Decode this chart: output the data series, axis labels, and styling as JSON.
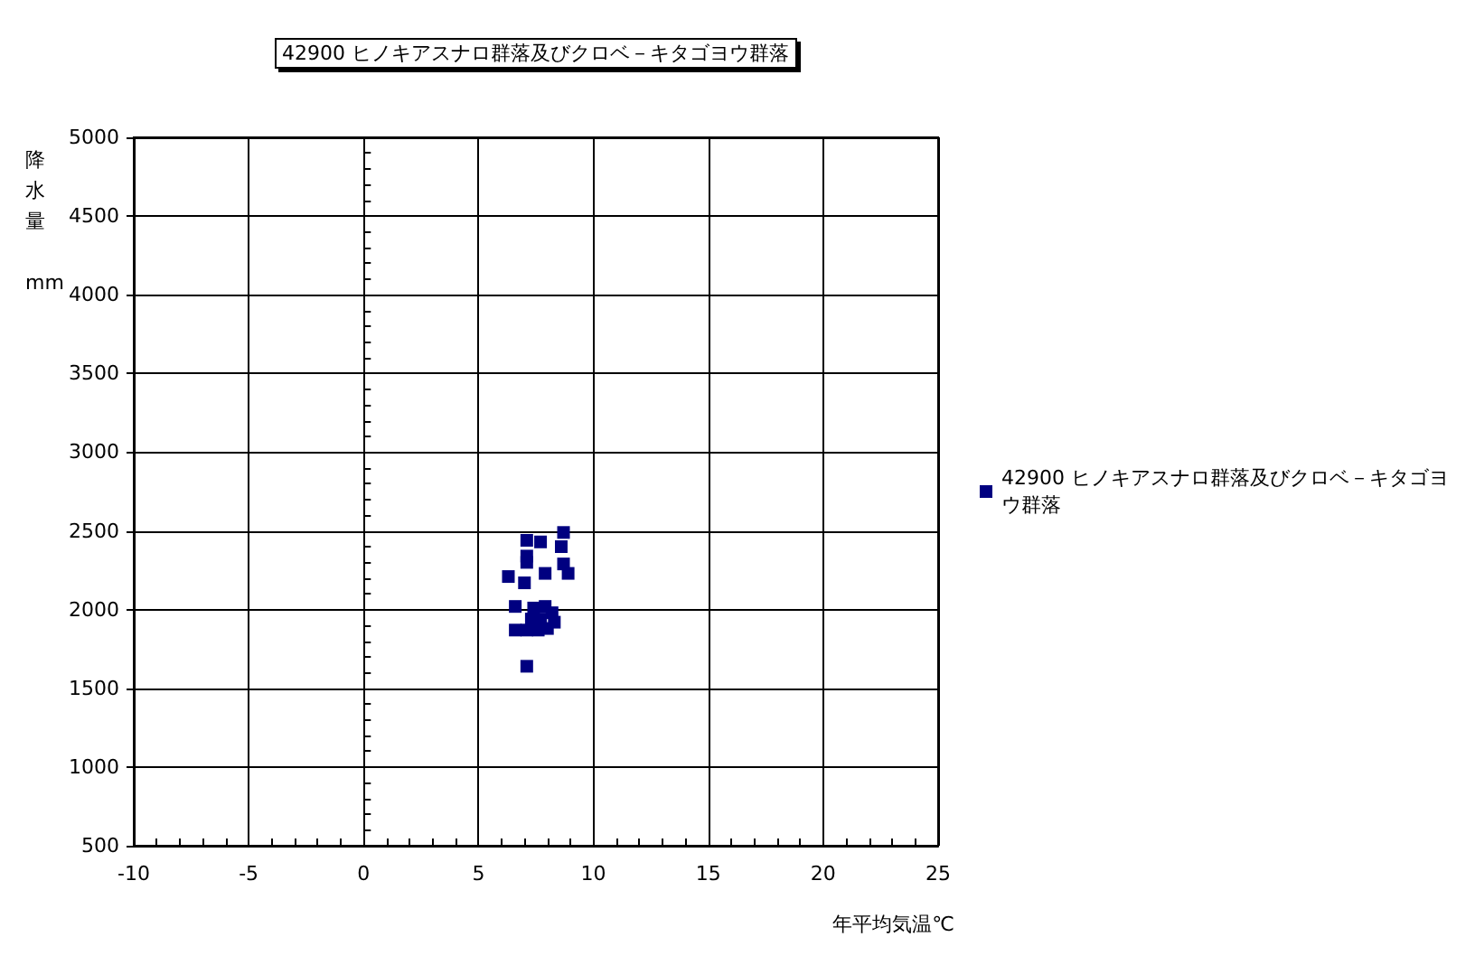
{
  "chart_data": {
    "type": "scatter",
    "title": "42900 ヒノキアスナロ群落及びクロベ－キタゴヨウ群落",
    "xlabel": "年平均気温℃",
    "ylabel": "降水量 mm",
    "x": [
      8.7,
      7.1,
      7.7,
      8.6,
      7.1,
      7.1,
      8.7,
      7.9,
      8.9,
      6.3,
      7.0,
      6.6,
      7.4,
      7.9,
      8.2,
      8.3,
      8.0,
      7.6,
      7.3,
      7.7,
      6.6,
      7.1,
      7.1
    ],
    "series": [
      {
        "name": "42900 ヒノキアスナロ群落及びクロベ－キタゴヨウ群落",
        "color": "#000080",
        "values": [
          2490,
          2440,
          2430,
          2400,
          2340,
          2300,
          2290,
          2230,
          2230,
          2210,
          2170,
          2020,
          2010,
          2020,
          1980,
          1920,
          1880,
          1870,
          1940,
          1940,
          1870,
          1870,
          1640
        ]
      }
    ],
    "xlim": [
      -10,
      25
    ],
    "xticks": [
      -10,
      -5,
      0,
      5,
      10,
      15,
      20,
      25
    ],
    "ylim": [
      500,
      5000
    ],
    "yticks": [
      500,
      1000,
      1500,
      2000,
      2500,
      3000,
      3500,
      4000,
      4500,
      5000
    ],
    "grid": true,
    "legend": "right",
    "marker": "square"
  }
}
